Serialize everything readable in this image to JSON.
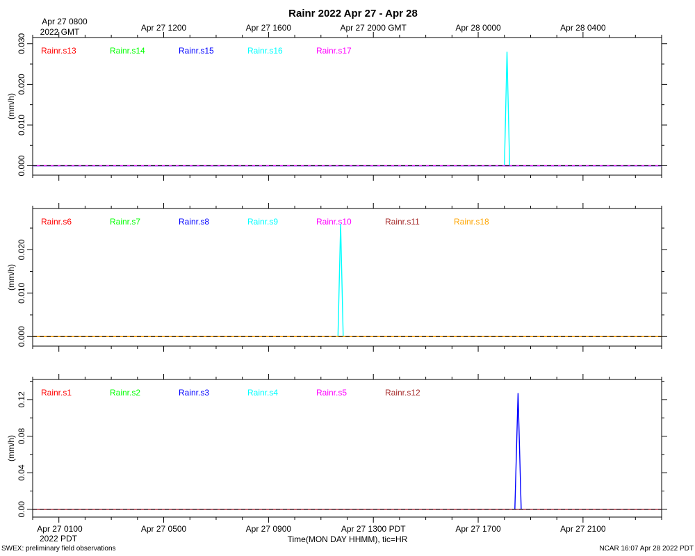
{
  "title": "Rainr 2022 Apr 27 - Apr 28",
  "top_axis": {
    "first_label_line1": "Apr 27 0800",
    "first_label_line2": "2022 GMT",
    "labels": [
      "Apr 27 1200",
      "Apr 27 1600",
      "Apr 27 2000 GMT",
      "Apr 28 0000",
      "Apr 28 0400"
    ]
  },
  "bottom_axis": {
    "first_label_line1": "Apr 27 0100",
    "first_label_line2": "2022 PDT",
    "labels": [
      "Apr 27 0500",
      "Apr 27 0900",
      "Apr 27 1300 PDT",
      "Apr 27 1700",
      "Apr 27 2100"
    ],
    "xlabel": "Time(MON DAY HHMM), tic=HR"
  },
  "footer": {
    "left": "SWEX: preliminary field observations",
    "right": "NCAR 16:07 Apr 28 2022 PDT"
  },
  "chart_data": [
    {
      "type": "line",
      "ylabel": "(mm/h)",
      "x_unit": "hours since Apr 27 0100 PDT",
      "xlim": [
        -1,
        23
      ],
      "ylim": [
        -0.0023,
        0.0315
      ],
      "yticks": [
        "0.000",
        "0.010",
        "0.020",
        "0.030"
      ],
      "ytick_values": [
        0,
        0.01,
        0.02,
        0.03
      ],
      "yminor": [
        0.005,
        0.015,
        0.025
      ],
      "series": [
        {
          "name": "Rainr.s13",
          "color": "#ff0000",
          "x": [
            -1,
            23
          ],
          "y": [
            0,
            0
          ]
        },
        {
          "name": "Rainr.s14",
          "color": "#00ff00",
          "x": [
            -1,
            23
          ],
          "y": [
            0,
            0
          ]
        },
        {
          "name": "Rainr.s15",
          "color": "#0000ff",
          "x": [
            -1,
            23
          ],
          "y": [
            0,
            0
          ]
        },
        {
          "name": "Rainr.s16",
          "color": "#00ffff",
          "x": [
            -1,
            17.0,
            17.1,
            17.2,
            23
          ],
          "y": [
            0,
            0,
            0.028,
            0,
            0
          ]
        },
        {
          "name": "Rainr.s17",
          "color": "#ff00ff",
          "x": [
            -1,
            23
          ],
          "y": [
            0,
            0
          ]
        }
      ]
    },
    {
      "type": "line",
      "ylabel": "(mm/h)",
      "x_unit": "hours since Apr 27 0100 PDT",
      "xlim": [
        -1,
        23
      ],
      "ylim": [
        -0.0022,
        0.0295
      ],
      "yticks": [
        "0.000",
        "0.010",
        "0.020"
      ],
      "ytick_values": [
        0,
        0.01,
        0.02
      ],
      "yminor": [
        0.005,
        0.015,
        0.025
      ],
      "series": [
        {
          "name": "Rainr.s6",
          "color": "#ff0000",
          "x": [
            -1,
            23
          ],
          "y": [
            0,
            0
          ]
        },
        {
          "name": "Rainr.s7",
          "color": "#00ff00",
          "x": [
            -1,
            23
          ],
          "y": [
            0,
            0
          ]
        },
        {
          "name": "Rainr.s8",
          "color": "#0000ff",
          "x": [
            -1,
            23
          ],
          "y": [
            0,
            0
          ]
        },
        {
          "name": "Rainr.s9",
          "color": "#00ffff",
          "x": [
            -1,
            10.65,
            10.75,
            10.85,
            23
          ],
          "y": [
            0,
            0,
            0.026,
            0,
            0
          ]
        },
        {
          "name": "Rainr.s10",
          "color": "#ff00ff",
          "x": [
            -1,
            23
          ],
          "y": [
            0,
            0
          ]
        },
        {
          "name": "Rainr.s11",
          "color": "#a52a2a",
          "x": [
            -1,
            23
          ],
          "y": [
            0,
            0
          ]
        },
        {
          "name": "Rainr.s18",
          "color": "#ffa500",
          "x": [
            -1,
            23
          ],
          "y": [
            0,
            0
          ]
        }
      ]
    },
    {
      "type": "line",
      "ylabel": "(mm/h)",
      "x_unit": "hours since Apr 27 0100 PDT",
      "xlim": [
        -1,
        23
      ],
      "ylim": [
        -0.0085,
        0.142
      ],
      "yticks": [
        "0.00",
        "0.04",
        "0.08",
        "0.12"
      ],
      "ytick_values": [
        0,
        0.04,
        0.08,
        0.12
      ],
      "yminor": [
        0.02,
        0.06,
        0.1,
        0.14
      ],
      "series": [
        {
          "name": "Rainr.s1",
          "color": "#ff0000",
          "x": [
            -1,
            23
          ],
          "y": [
            0,
            0
          ]
        },
        {
          "name": "Rainr.s2",
          "color": "#00ff00",
          "x": [
            -1,
            23
          ],
          "y": [
            0,
            0
          ]
        },
        {
          "name": "Rainr.s3",
          "color": "#0000ff",
          "x": [
            -1,
            17.4,
            17.52,
            17.64,
            23
          ],
          "y": [
            0,
            0,
            0.127,
            0,
            0
          ]
        },
        {
          "name": "Rainr.s4",
          "color": "#00ffff",
          "x": [
            -1,
            23
          ],
          "y": [
            0,
            0
          ]
        },
        {
          "name": "Rainr.s5",
          "color": "#ff00ff",
          "x": [
            -1,
            23
          ],
          "y": [
            0,
            0
          ]
        },
        {
          "name": "Rainr.s12",
          "color": "#a52a2a",
          "x": [
            -1,
            23
          ],
          "y": [
            0,
            0
          ]
        }
      ]
    }
  ]
}
